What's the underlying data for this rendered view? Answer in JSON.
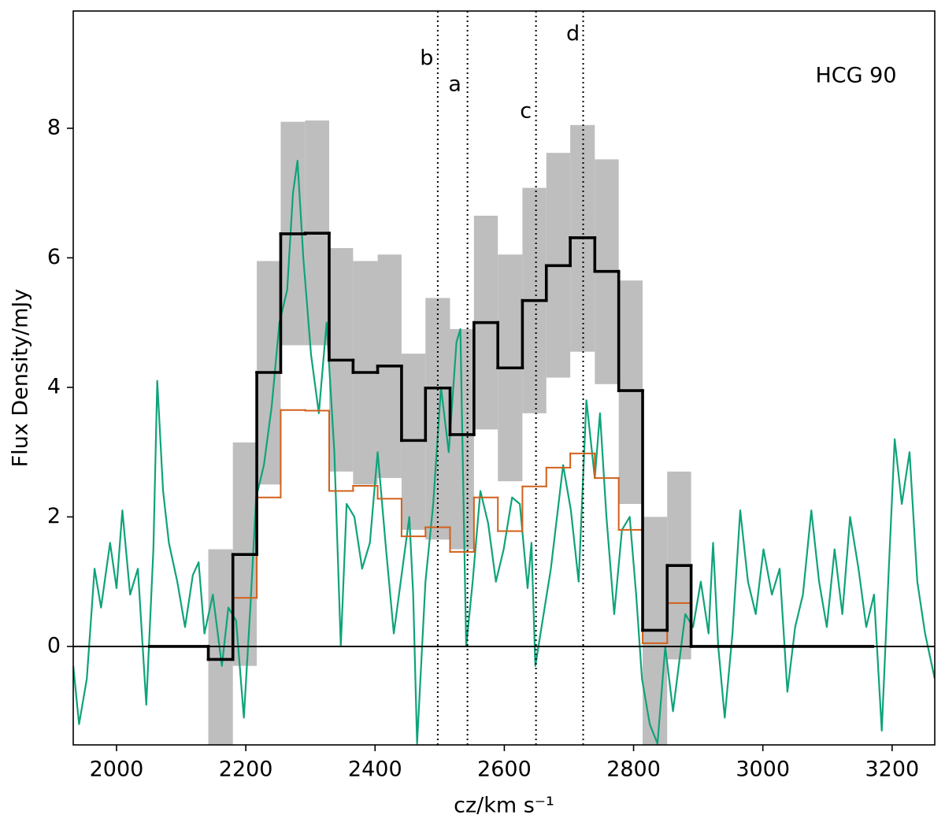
{
  "chart_data": {
    "type": "spectrum",
    "xlabel": "cz/km s⁻¹",
    "ylabel": "Flux Density/mJy",
    "annotation": "HCG 90",
    "xlim": [
      1933,
      3266
    ],
    "ylim": [
      -1.52,
      9.81
    ],
    "xticks": [
      2000,
      2200,
      2400,
      2600,
      2800,
      3000,
      3200
    ],
    "yticks": [
      0,
      2,
      4,
      6,
      8
    ],
    "hline": 0,
    "vlines": [
      {
        "x": 2497,
        "label": "b"
      },
      {
        "x": 2543,
        "label": "a"
      },
      {
        "x": 2649,
        "label": "c"
      },
      {
        "x": 2722,
        "label": "d"
      }
    ],
    "series": [
      {
        "type": "band",
        "color": "#bebebe",
        "bins": [
          2142,
          2180,
          2217,
          2254,
          2292,
          2329,
          2366,
          2404,
          2441,
          2478,
          2516,
          2553,
          2590,
          2628,
          2665,
          2702,
          2740,
          2777,
          2814,
          2852,
          2889
        ],
        "lower": [
          -2.0,
          -0.3,
          2.5,
          4.65,
          4.65,
          2.7,
          2.5,
          2.6,
          1.8,
          1.65,
          1.5,
          3.35,
          2.55,
          3.6,
          4.15,
          4.55,
          4.05,
          2.2,
          -1.6,
          -0.2
        ],
        "upper": [
          1.5,
          3.15,
          5.95,
          8.1,
          8.12,
          6.15,
          5.95,
          6.05,
          4.52,
          5.38,
          4.9,
          6.65,
          6.05,
          7.08,
          7.62,
          8.05,
          7.52,
          5.65,
          2.0,
          2.7
        ]
      },
      {
        "type": "line",
        "color": "#0fa37a",
        "x": [
          1933,
          1942,
          1954,
          1966,
          1976,
          1990,
          2000,
          2009,
          2021,
          2033,
          2046,
          2057,
          2063,
          2072,
          2081,
          2094,
          2106,
          2118,
          2127,
          2136,
          2149,
          2163,
          2173,
          2185,
          2197,
          2207,
          2216,
          2228,
          2240,
          2252,
          2264,
          2273,
          2280,
          2289,
          2301,
          2313,
          2325,
          2337,
          2347,
          2356,
          2368,
          2380,
          2392,
          2404,
          2417,
          2429,
          2441,
          2453,
          2459,
          2465,
          2478,
          2490,
          2502,
          2514,
          2526,
          2532,
          2541,
          2551,
          2563,
          2575,
          2587,
          2599,
          2612,
          2624,
          2636,
          2642,
          2648,
          2672,
          2691,
          2703,
          2715,
          2727,
          2740,
          2748,
          2758,
          2770,
          2782,
          2794,
          2804,
          2813,
          2825,
          2837,
          2849,
          2861,
          2880,
          2892,
          2904,
          2916,
          2923,
          2931,
          2941,
          2953,
          2965,
          2977,
          2989,
          3001,
          3014,
          3026,
          3038,
          3050,
          3062,
          3075,
          3087,
          3099,
          3111,
          3123,
          3135,
          3148,
          3160,
          3172,
          3184,
          3194,
          3204,
          3215,
          3227,
          3239,
          3251,
          3266
        ],
        "values": [
          -0.3,
          -1.2,
          -0.5,
          1.2,
          0.6,
          1.6,
          0.9,
          2.1,
          0.8,
          1.2,
          -0.9,
          1.5,
          4.1,
          2.4,
          1.6,
          1.0,
          0.3,
          1.1,
          1.3,
          0.2,
          0.8,
          -0.3,
          0.6,
          0.4,
          -1.1,
          0.6,
          2.3,
          2.8,
          3.7,
          5.0,
          5.5,
          7.0,
          7.5,
          6.0,
          4.5,
          3.6,
          5.0,
          3.0,
          0.0,
          2.2,
          2.0,
          1.2,
          1.6,
          3.0,
          1.5,
          0.2,
          1.1,
          2.0,
          0.8,
          -1.5,
          1.0,
          2.2,
          4.0,
          3.0,
          4.7,
          4.9,
          0.0,
          1.0,
          2.4,
          1.9,
          1.0,
          1.5,
          2.3,
          2.2,
          0.9,
          1.6,
          -0.3,
          1.2,
          2.8,
          2.1,
          1.0,
          3.8,
          2.6,
          3.6,
          2.0,
          0.5,
          1.8,
          2.0,
          0.8,
          -0.5,
          -1.2,
          -1.5,
          0.0,
          -1.0,
          0.5,
          0.3,
          1.0,
          0.2,
          1.6,
          0.0,
          -1.1,
          0.2,
          2.1,
          1.0,
          0.5,
          1.5,
          0.8,
          1.2,
          -0.7,
          0.3,
          0.8,
          2.1,
          1.0,
          0.3,
          1.5,
          0.5,
          2.0,
          1.2,
          0.3,
          0.8,
          -1.3,
          1.0,
          3.2,
          2.2,
          3.0,
          1.0,
          0.2,
          -0.5
        ]
      },
      {
        "type": "step",
        "color": "#d2601a",
        "bins": [
          2180,
          2217,
          2254,
          2292,
          2329,
          2366,
          2404,
          2441,
          2478,
          2516,
          2553,
          2590,
          2628,
          2665,
          2702,
          2740,
          2777,
          2814,
          2852,
          2889
        ],
        "values": [
          0.75,
          2.3,
          3.65,
          3.64,
          2.4,
          2.48,
          2.28,
          1.7,
          1.84,
          1.46,
          2.3,
          1.78,
          2.47,
          2.76,
          2.98,
          2.6,
          1.8,
          0.05,
          0.67
        ]
      },
      {
        "type": "step",
        "color": "#000000",
        "bins": [
          2051,
          2142,
          2180,
          2217,
          2254,
          2292,
          2329,
          2366,
          2404,
          2441,
          2478,
          2516,
          2553,
          2590,
          2628,
          2665,
          2702,
          2740,
          2777,
          2814,
          2852,
          2889,
          3170
        ],
        "values": [
          0,
          -0.2,
          1.42,
          4.23,
          6.37,
          6.38,
          4.42,
          4.23,
          4.33,
          3.18,
          3.99,
          3.27,
          5.0,
          4.3,
          5.34,
          5.88,
          6.31,
          5.79,
          3.95,
          0.25,
          1.25,
          0
        ]
      }
    ]
  }
}
